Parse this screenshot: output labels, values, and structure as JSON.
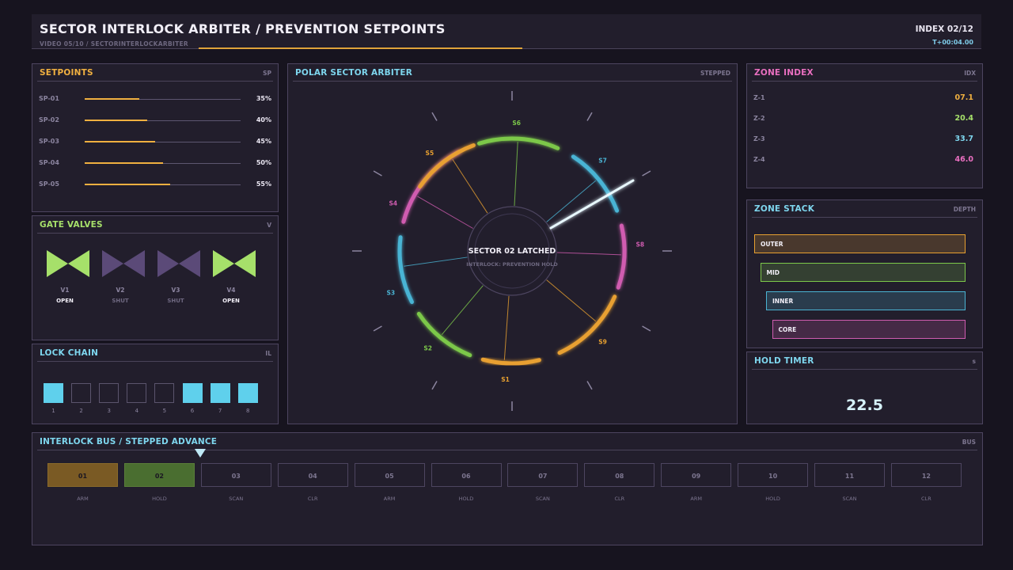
{
  "header": {
    "title": "SECTOR INTERLOCK ARBITER / PREVENTION SETPOINTS",
    "subtitle": "VIDEO 05/10 / SECTORINTERLOCKARBITER",
    "index": "INDEX 02/12",
    "time": "T+00:04.00",
    "progress": 0.34
  },
  "setpoints": {
    "title": "SETPOINTS",
    "tag": "SP",
    "items": [
      {
        "label": "SP-01",
        "value": "35%",
        "fraction": 0.35
      },
      {
        "label": "SP-02",
        "value": "40%",
        "fraction": 0.4
      },
      {
        "label": "SP-03",
        "value": "45%",
        "fraction": 0.45
      },
      {
        "label": "SP-04",
        "value": "50%",
        "fraction": 0.5
      },
      {
        "label": "SP-05",
        "value": "55%",
        "fraction": 0.55
      }
    ]
  },
  "valves": {
    "title": "GATE VALVES",
    "tag": "V",
    "items": [
      {
        "name": "V1",
        "state": "OPEN"
      },
      {
        "name": "V2",
        "state": "SHUT"
      },
      {
        "name": "V3",
        "state": "SHUT"
      },
      {
        "name": "V4",
        "state": "OPEN"
      }
    ]
  },
  "lock_chain": {
    "title": "LOCK CHAIN",
    "tag": "IL",
    "items": [
      {
        "num": "1",
        "on": true
      },
      {
        "num": "2",
        "on": false
      },
      {
        "num": "3",
        "on": false
      },
      {
        "num": "4",
        "on": false
      },
      {
        "num": "5",
        "on": false
      },
      {
        "num": "6",
        "on": true
      },
      {
        "num": "7",
        "on": true
      },
      {
        "num": "8",
        "on": true
      }
    ]
  },
  "arbiter": {
    "title": "POLAR SECTOR ARBITER",
    "tag": "STEPPED",
    "center_title": "SECTOR 02 LATCHED",
    "center_sub": "INTERLOCK: PREVENTION HOLD",
    "sectors": [
      {
        "label": "S1",
        "color": "#e8a030"
      },
      {
        "label": "S2",
        "color": "#7cc84a"
      },
      {
        "label": "S3",
        "color": "#4ab4d4"
      },
      {
        "label": "S4",
        "color": "#d05cb0"
      },
      {
        "label": "S5",
        "color": "#e8a030"
      },
      {
        "label": "S6",
        "color": "#7cc84a"
      },
      {
        "label": "S7",
        "color": "#4ab4d4"
      },
      {
        "label": "S8",
        "color": "#d05cb0"
      },
      {
        "label": "S9",
        "color": "#e8a030"
      }
    ]
  },
  "zone_index": {
    "title": "ZONE INDEX",
    "tag": "IDX",
    "items": [
      {
        "label": "Z-1",
        "value": "07.1",
        "color": "#f0b040"
      },
      {
        "label": "Z-2",
        "value": "20.4",
        "color": "#a6e06a"
      },
      {
        "label": "Z-3",
        "value": "33.7",
        "color": "#7ed6ee"
      },
      {
        "label": "Z-4",
        "value": "46.0",
        "color": "#e96fc0"
      }
    ]
  },
  "zone_stack": {
    "title": "ZONE STACK",
    "tag": "DEPTH",
    "items": [
      {
        "label": "OUTER",
        "color": "#e8a030"
      },
      {
        "label": "MID",
        "color": "#7cc84a"
      },
      {
        "label": "INNER",
        "color": "#4ab4d4"
      },
      {
        "label": "CORE",
        "color": "#d05cb0"
      }
    ]
  },
  "hold_timer": {
    "title": "HOLD TIMER",
    "tag": "s",
    "value": "22.5"
  },
  "bus": {
    "title": "INTERLOCK BUS / STEPPED ADVANCE",
    "tag": "BUS",
    "cells": [
      {
        "num": "01",
        "label": "ARM",
        "state": "orange"
      },
      {
        "num": "02",
        "label": "HOLD",
        "state": "green"
      },
      {
        "num": "03",
        "label": "SCAN",
        "state": "off"
      },
      {
        "num": "04",
        "label": "CLR",
        "state": "off"
      },
      {
        "num": "05",
        "label": "ARM",
        "state": "off"
      },
      {
        "num": "06",
        "label": "HOLD",
        "state": "off"
      },
      {
        "num": "07",
        "label": "SCAN",
        "state": "off"
      },
      {
        "num": "08",
        "label": "CLR",
        "state": "off"
      },
      {
        "num": "09",
        "label": "ARM",
        "state": "off"
      },
      {
        "num": "10",
        "label": "HOLD",
        "state": "off"
      },
      {
        "num": "11",
        "label": "SCAN",
        "state": "off"
      },
      {
        "num": "12",
        "label": "CLR",
        "state": "off"
      }
    ]
  },
  "colors": {
    "orange": "#e8a030",
    "green": "#7cc84a",
    "cyan": "#4ab4d4",
    "pink": "#d05cb0"
  }
}
